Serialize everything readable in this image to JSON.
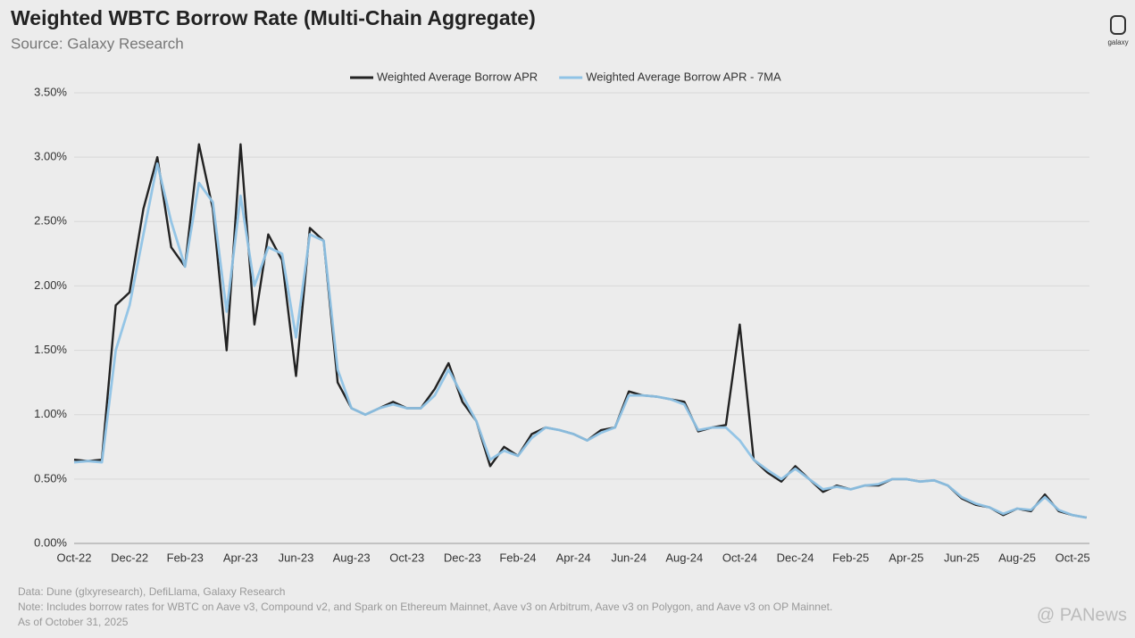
{
  "chart_data": {
    "type": "line",
    "title": "Weighted WBTC Borrow Rate (Multi-Chain Aggregate)",
    "subtitle": "Source: Galaxy Research",
    "logo": "galaxy",
    "watermark": "@ PANews",
    "footnotes": [
      "Data: Dune (glxyresearch), DefiLlama, Galaxy Research",
      "Note: Includes borrow rates for WBTC on Aave v3, Compound v2, and Spark on Ethereum Mainnet, Aave v3 on Arbitrum, Aave v3 on Polygon, and Aave v3 on OP Mainnet.",
      "As of October 31, 2025"
    ],
    "legend": "top",
    "grid": true,
    "categories": [
      "Oct-22",
      null,
      null,
      null,
      "Dec-22",
      null,
      null,
      null,
      "Feb-23",
      null,
      null,
      null,
      "Apr-23",
      null,
      null,
      null,
      "Jun-23",
      null,
      null,
      null,
      "Aug-23",
      null,
      null,
      null,
      "Oct-23",
      null,
      null,
      null,
      "Dec-23",
      null,
      null,
      null,
      "Feb-24",
      null,
      null,
      null,
      "Apr-24",
      null,
      null,
      null,
      "Jun-24",
      null,
      null,
      null,
      "Aug-24",
      null,
      null,
      null,
      "Oct-24",
      null,
      null,
      null,
      "Dec-24",
      null,
      null,
      null,
      "Feb-25",
      null,
      null,
      null,
      "Apr-25",
      null,
      null,
      null,
      "Jun-25",
      null,
      null,
      null,
      "Aug-25",
      null,
      null,
      null,
      "Oct-25",
      null
    ],
    "series": [
      {
        "name": "Weighted Average Borrow APR",
        "color": "#222222",
        "values": [
          0.65,
          0.64,
          0.65,
          1.85,
          1.95,
          2.6,
          3.0,
          2.3,
          2.15,
          3.1,
          2.6,
          1.5,
          3.1,
          1.7,
          2.4,
          2.2,
          1.3,
          2.45,
          2.35,
          1.25,
          1.05,
          1.0,
          1.05,
          1.1,
          1.05,
          1.05,
          1.2,
          1.4,
          1.1,
          0.95,
          0.6,
          0.75,
          0.68,
          0.85,
          0.9,
          0.88,
          0.85,
          0.8,
          0.88,
          0.9,
          1.18,
          1.15,
          1.14,
          1.12,
          1.1,
          0.87,
          0.9,
          0.92,
          1.7,
          0.65,
          0.55,
          0.48,
          0.6,
          0.5,
          0.4,
          0.45,
          0.42,
          0.45,
          0.45,
          0.5,
          0.5,
          0.48,
          0.49,
          0.45,
          0.35,
          0.3,
          0.28,
          0.22,
          0.27,
          0.25,
          0.38,
          0.25,
          0.22,
          0.2
        ]
      },
      {
        "name": "Weighted Average Borrow APR - 7MA",
        "color": "#8fc3e6",
        "values": [
          0.63,
          0.64,
          0.63,
          1.5,
          1.85,
          2.4,
          2.95,
          2.5,
          2.15,
          2.8,
          2.65,
          1.8,
          2.7,
          2.0,
          2.3,
          2.25,
          1.6,
          2.4,
          2.35,
          1.35,
          1.05,
          1.0,
          1.05,
          1.08,
          1.05,
          1.05,
          1.15,
          1.35,
          1.15,
          0.95,
          0.65,
          0.72,
          0.68,
          0.82,
          0.9,
          0.88,
          0.85,
          0.8,
          0.86,
          0.9,
          1.15,
          1.15,
          1.14,
          1.12,
          1.08,
          0.88,
          0.9,
          0.9,
          0.8,
          0.65,
          0.57,
          0.5,
          0.58,
          0.5,
          0.42,
          0.44,
          0.42,
          0.45,
          0.46,
          0.5,
          0.5,
          0.48,
          0.49,
          0.45,
          0.36,
          0.31,
          0.28,
          0.23,
          0.27,
          0.26,
          0.36,
          0.26,
          0.22,
          0.2
        ]
      }
    ],
    "ylim": [
      0,
      3.5
    ],
    "yticks": [
      {
        "value": 0,
        "label": "0.00%"
      },
      {
        "value": 0.5,
        "label": "0.50%"
      },
      {
        "value": 1,
        "label": "1.00%"
      },
      {
        "value": 1.5,
        "label": "1.50%"
      },
      {
        "value": 2,
        "label": "2.00%"
      },
      {
        "value": 2.5,
        "label": "2.50%"
      },
      {
        "value": 3,
        "label": "3.00%"
      },
      {
        "value": 3.5,
        "label": "3.50%"
      }
    ]
  }
}
